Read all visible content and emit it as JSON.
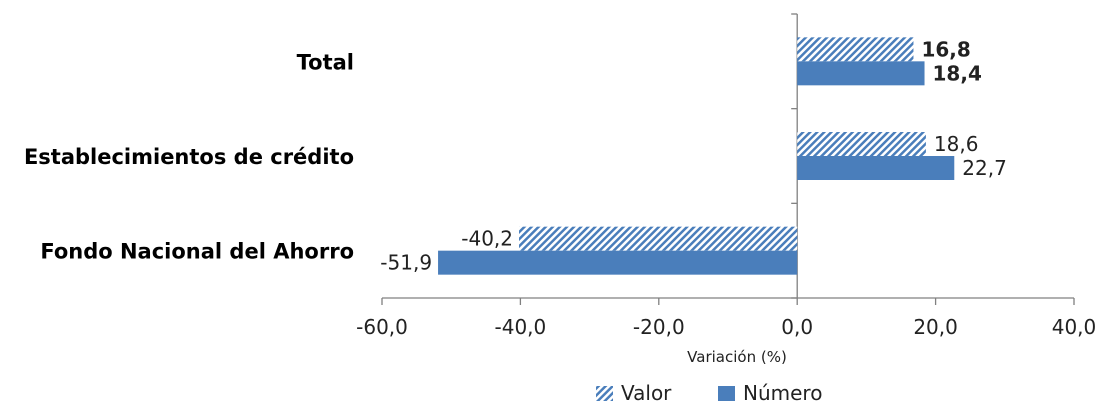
{
  "colors": {
    "numero": "#4a7ebb",
    "valor_hatch": "#4a7ebb",
    "axis": "#808080"
  },
  "legend": {
    "valor_label": "Valor",
    "numero_label": "Número"
  },
  "chart_data": {
    "type": "bar",
    "orientation": "horizontal",
    "categories": [
      "Total",
      "Establecimientos de crédito",
      "Fondo Nacional del Ahorro"
    ],
    "category_bold": [
      true,
      true,
      true
    ],
    "series": [
      {
        "name": "Valor",
        "pattern": "hatched",
        "values": [
          16.8,
          18.6,
          -40.2
        ],
        "labels": [
          "16,8",
          "18,6",
          "-40,2"
        ]
      },
      {
        "name": "Número",
        "pattern": "solid",
        "values": [
          18.4,
          22.7,
          -51.9
        ],
        "labels": [
          "18,4",
          "22,7",
          "-51,9"
        ]
      }
    ],
    "label_bold": [
      true,
      false,
      false
    ],
    "xlim": [
      -60,
      40
    ],
    "xticks": [
      -60,
      -40,
      -20,
      0,
      20,
      40
    ],
    "xtick_labels": [
      "-60,0",
      "-40,0",
      "-20,0",
      "0,0",
      "20,0",
      "40,0"
    ],
    "xlabel": "Variación (%)",
    "ylabel": "",
    "title": "",
    "grid": false,
    "legend_position": "bottom"
  }
}
